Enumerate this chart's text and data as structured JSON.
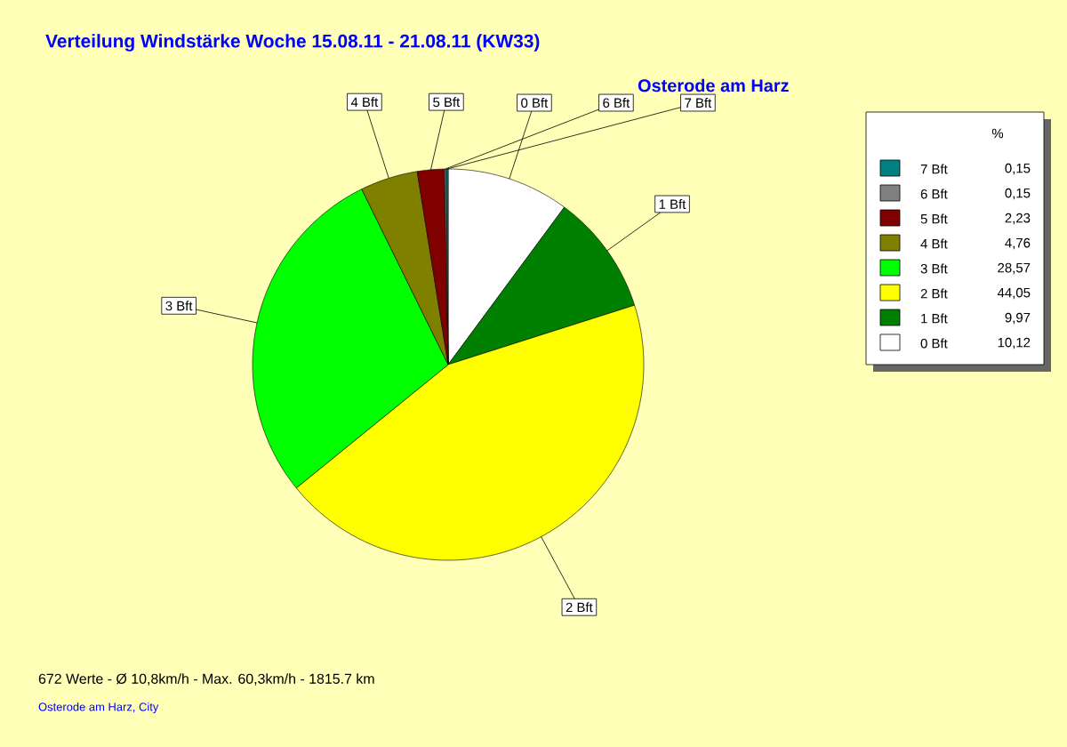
{
  "chart_data": {
    "type": "pie",
    "title": "Verteilung Windstärke  Woche 15.08.11 - 21.08.11 (KW33)",
    "subtitle": "Osterode am Harz",
    "categories": [
      "0 Bft",
      "1 Bft",
      "2 Bft",
      "3 Bft",
      "4 Bft",
      "5 Bft",
      "6 Bft",
      "7 Bft"
    ],
    "values": [
      10.12,
      9.97,
      44.05,
      28.57,
      4.76,
      2.23,
      0.15,
      0.15
    ],
    "value_labels": [
      "10,12",
      "9,97",
      "44,05",
      "28,57",
      "4,76",
      "2,23",
      "0,15",
      "0,15"
    ],
    "colors": [
      "#ffffff",
      "#008000",
      "#ffff00",
      "#00ff00",
      "#808000",
      "#800000",
      "#808080",
      "#008080"
    ],
    "legend_title": "%",
    "legend": "right",
    "annotations": [
      "672 Werte   -   Ø 10,8km/h  -  Max. 60,3km/h   -   1815.7 km",
      "Osterode am Harz, City"
    ]
  }
}
